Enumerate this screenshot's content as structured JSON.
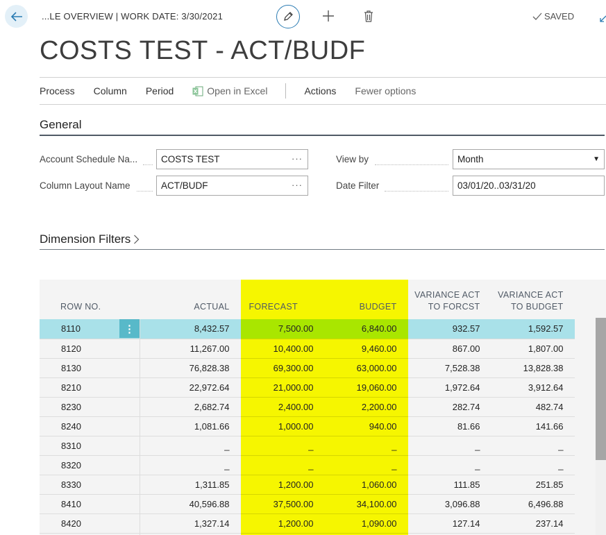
{
  "header": {
    "breadcrumb": "...LE OVERVIEW | WORK DATE: 3/30/2021",
    "saved_label": "SAVED",
    "icons": [
      "back-arrow-icon",
      "pencil-icon",
      "plus-icon",
      "trash-icon",
      "checkmark-icon",
      "collapse-icon"
    ]
  },
  "page": {
    "title": "COSTS TEST - ACT/BUDF"
  },
  "actions": {
    "process": "Process",
    "column": "Column",
    "period": "Period",
    "open_in_excel": "Open in Excel",
    "actions": "Actions",
    "fewer_options": "Fewer options"
  },
  "general": {
    "title": "General",
    "account_schedule_name_label": "Account Schedule Na...",
    "account_schedule_name_value": "COSTS TEST",
    "column_layout_name_label": "Column Layout Name",
    "column_layout_name_value": "ACT/BUDF",
    "view_by_label": "View by",
    "view_by_value": "Month",
    "date_filter_label": "Date Filter",
    "date_filter_value": "03/01/20..03/31/20"
  },
  "dimension_filters": {
    "title": "Dimension Filters"
  },
  "colors": {
    "highlight_yellow": "#f6f600",
    "selected_row": "#a9e1e9",
    "accent": "#2b7cb3",
    "row_menu": "#58b9c9"
  },
  "grid": {
    "columns": {
      "row_no": "ROW NO.",
      "actual": "ACTUAL",
      "forecast": "FORECAST",
      "budget": "BUDGET",
      "var_forcst_1": "VARIANCE ACT",
      "var_forcst_2": "TO FORCST",
      "var_budget_1": "VARIANCE ACT",
      "var_budget_2": "TO BUDGET"
    },
    "rows": [
      {
        "row_no": "8110",
        "actual": "8,432.57",
        "forecast": "7,500.00",
        "budget": "6,840.00",
        "var_forcst": "932.57",
        "var_budget": "1,592.57"
      },
      {
        "row_no": "8120",
        "actual": "11,267.00",
        "forecast": "10,400.00",
        "budget": "9,460.00",
        "var_forcst": "867.00",
        "var_budget": "1,807.00"
      },
      {
        "row_no": "8130",
        "actual": "76,828.38",
        "forecast": "69,300.00",
        "budget": "63,000.00",
        "var_forcst": "7,528.38",
        "var_budget": "13,828.38"
      },
      {
        "row_no": "8210",
        "actual": "22,972.64",
        "forecast": "21,000.00",
        "budget": "19,060.00",
        "var_forcst": "1,972.64",
        "var_budget": "3,912.64"
      },
      {
        "row_no": "8230",
        "actual": "2,682.74",
        "forecast": "2,400.00",
        "budget": "2,200.00",
        "var_forcst": "282.74",
        "var_budget": "482.74"
      },
      {
        "row_no": "8240",
        "actual": "1,081.66",
        "forecast": "1,000.00",
        "budget": "940.00",
        "var_forcst": "81.66",
        "var_budget": "141.66"
      },
      {
        "row_no": "8310",
        "actual": "_",
        "forecast": "_",
        "budget": "_",
        "var_forcst": "_",
        "var_budget": "_"
      },
      {
        "row_no": "8320",
        "actual": "_",
        "forecast": "_",
        "budget": "_",
        "var_forcst": "_",
        "var_budget": "_"
      },
      {
        "row_no": "8330",
        "actual": "1,311.85",
        "forecast": "1,200.00",
        "budget": "1,060.00",
        "var_forcst": "111.85",
        "var_budget": "251.85"
      },
      {
        "row_no": "8410",
        "actual": "40,596.88",
        "forecast": "37,500.00",
        "budget": "34,100.00",
        "var_forcst": "3,096.88",
        "var_budget": "6,496.88"
      },
      {
        "row_no": "8420",
        "actual": "1,327.14",
        "forecast": "1,200.00",
        "budget": "1,090.00",
        "var_forcst": "127.14",
        "var_budget": "237.14"
      },
      {
        "row_no": "",
        "actual": "",
        "forecast": "",
        "budget": "",
        "var_forcst": "",
        "var_budget": ""
      }
    ],
    "selected_row_index": 0,
    "row_menu_glyph": "⋮"
  }
}
